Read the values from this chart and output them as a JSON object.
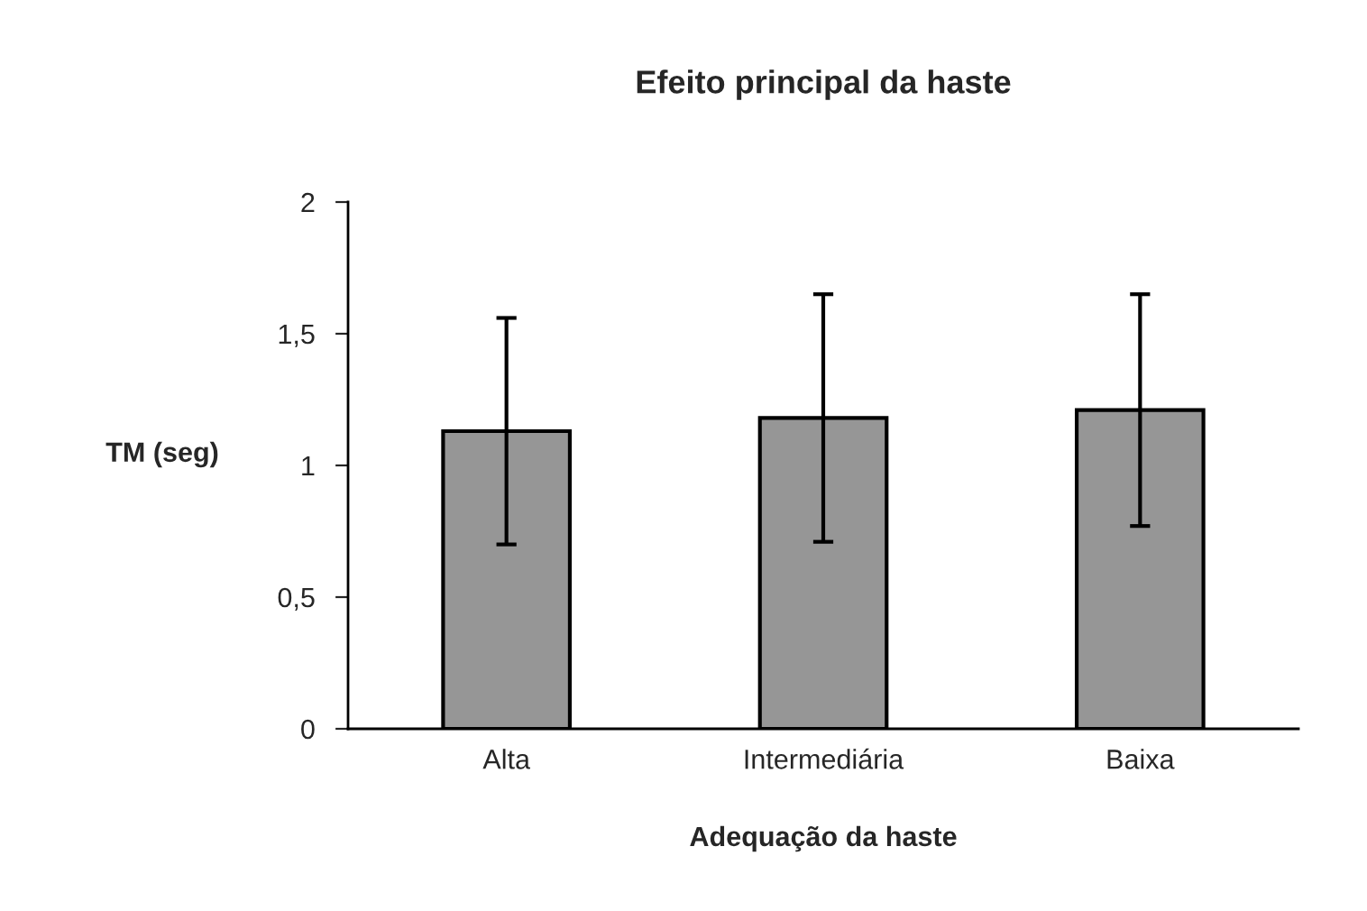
{
  "chart_data": {
    "type": "bar",
    "title": "Efeito principal da haste",
    "xlabel": "Adequação da haste",
    "ylabel": "TM (seg)",
    "categories": [
      "Alta",
      "Intermediária",
      "Baixa"
    ],
    "values": [
      1.13,
      1.18,
      1.21
    ],
    "errors": [
      0.43,
      0.47,
      0.44
    ],
    "color": "#969696",
    "ylim": [
      0,
      2
    ],
    "yticks": [
      {
        "value": 0,
        "label": "0"
      },
      {
        "value": 0.5,
        "label": "0,5"
      },
      {
        "value": 1,
        "label": "1"
      },
      {
        "value": 1.5,
        "label": "1,5"
      },
      {
        "value": 2,
        "label": "2"
      }
    ],
    "grid": false,
    "legend": false
  }
}
